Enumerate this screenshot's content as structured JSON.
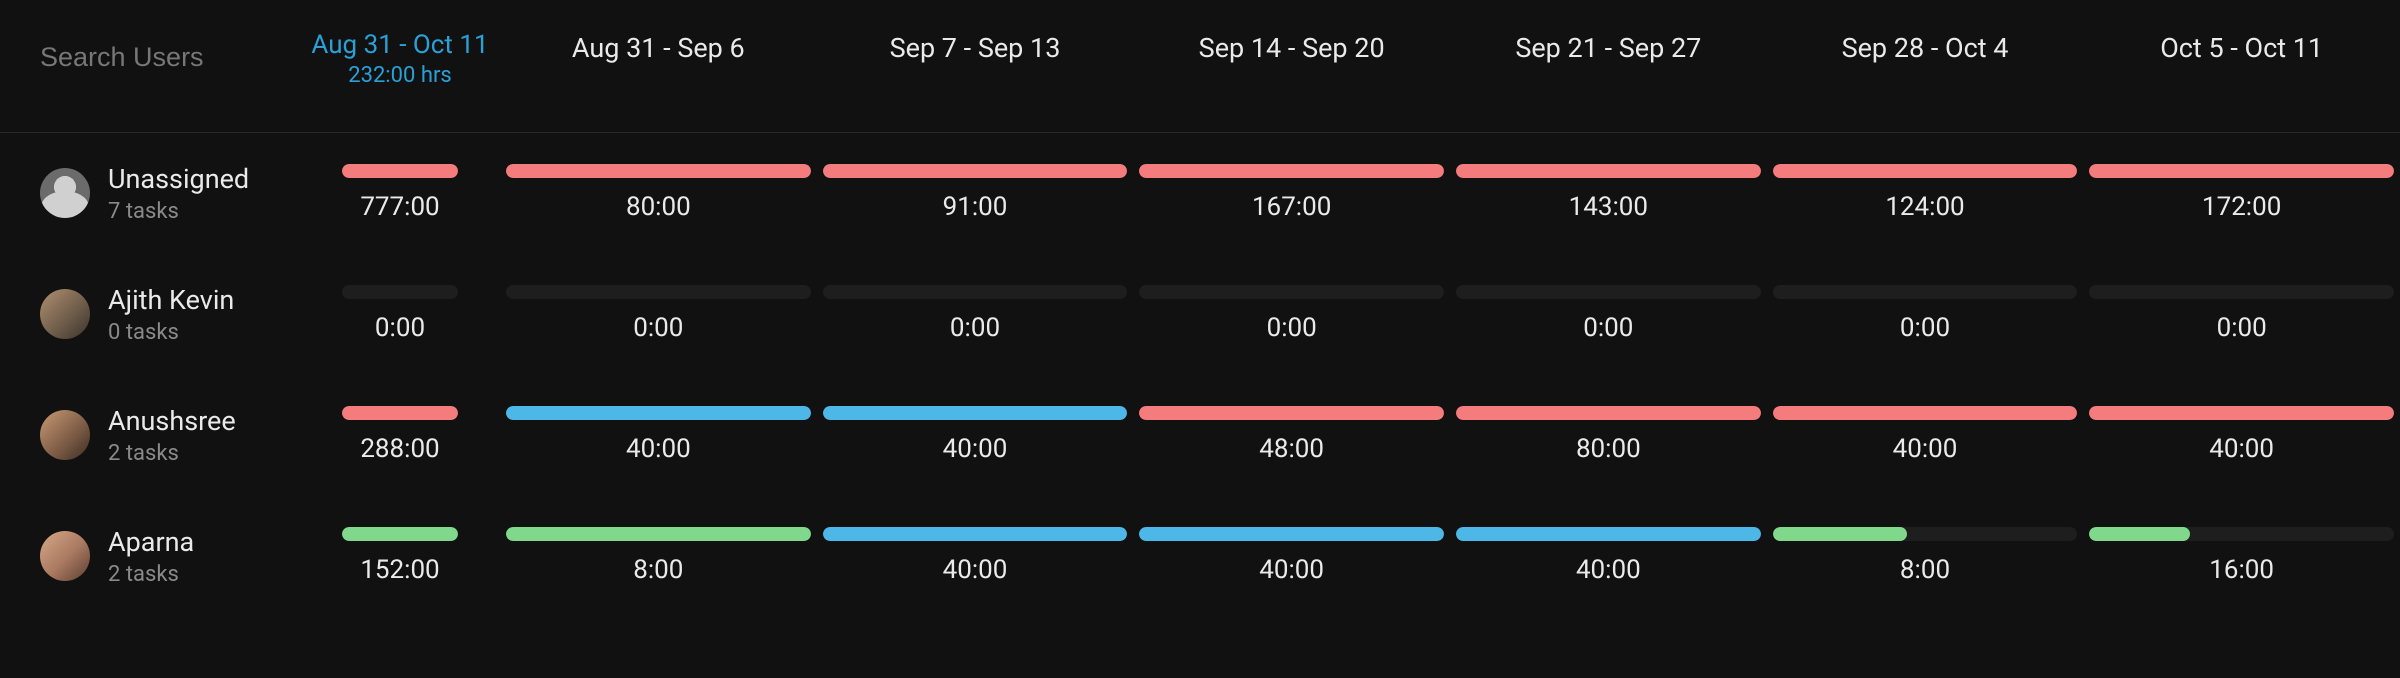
{
  "colors": {
    "red": "#f47c7c",
    "blue": "#4db8e8",
    "green": "#7fd88b",
    "accent": "#2aa0d8",
    "track": "#1e1e1e",
    "text": "#eaeaea",
    "muted": "#8a8a8a",
    "bg": "#111111"
  },
  "search": {
    "placeholder": "Search Users"
  },
  "total_header": {
    "range": "Aug 31 - Oct 11",
    "hrs": "232:00 hrs"
  },
  "period_headers": [
    "Aug 31 - Sep 6",
    "Sep 7 - Sep 13",
    "Sep 14 - Sep 20",
    "Sep 21 - Sep 27",
    "Sep 28 - Oct 4",
    "Oct 5 - Oct 11"
  ],
  "users": [
    {
      "name": "Unassigned",
      "sub": "7 tasks",
      "avatar": "placeholder",
      "total": {
        "value": "777:00",
        "segments": [
          {
            "color": "red",
            "pct": 100
          }
        ]
      },
      "periods": [
        {
          "value": "80:00",
          "segments": [
            {
              "color": "red",
              "pct": 100
            }
          ]
        },
        {
          "value": "91:00",
          "segments": [
            {
              "color": "red",
              "pct": 100
            }
          ]
        },
        {
          "value": "167:00",
          "segments": [
            {
              "color": "red",
              "pct": 100
            }
          ]
        },
        {
          "value": "143:00",
          "segments": [
            {
              "color": "red",
              "pct": 100
            }
          ]
        },
        {
          "value": "124:00",
          "segments": [
            {
              "color": "red",
              "pct": 100
            }
          ]
        },
        {
          "value": "172:00",
          "segments": [
            {
              "color": "red",
              "pct": 100
            }
          ]
        }
      ]
    },
    {
      "name": "Ajith Kevin",
      "sub": "0 tasks",
      "avatar_bg": "linear-gradient(135deg,#b09070 0%,#6b5a48 60%,#3a332a 100%)",
      "total": {
        "value": "0:00",
        "segments": []
      },
      "periods": [
        {
          "value": "0:00",
          "segments": []
        },
        {
          "value": "0:00",
          "segments": []
        },
        {
          "value": "0:00",
          "segments": []
        },
        {
          "value": "0:00",
          "segments": []
        },
        {
          "value": "0:00",
          "segments": []
        },
        {
          "value": "0:00",
          "segments": []
        }
      ]
    },
    {
      "name": "Anushsree",
      "sub": "2 tasks",
      "avatar_bg": "linear-gradient(135deg,#c99a74 0%,#7a5a44 60%,#3a2d22 100%)",
      "total": {
        "value": "288:00",
        "segments": [
          {
            "color": "red",
            "pct": 100
          }
        ]
      },
      "periods": [
        {
          "value": "40:00",
          "segments": [
            {
              "color": "blue",
              "pct": 100
            }
          ]
        },
        {
          "value": "40:00",
          "segments": [
            {
              "color": "blue",
              "pct": 100
            }
          ]
        },
        {
          "value": "48:00",
          "segments": [
            {
              "color": "red",
              "pct": 100
            }
          ]
        },
        {
          "value": "80:00",
          "segments": [
            {
              "color": "red",
              "pct": 100
            }
          ]
        },
        {
          "value": "40:00",
          "segments": [
            {
              "color": "red",
              "pct": 100
            }
          ]
        },
        {
          "value": "40:00",
          "segments": [
            {
              "color": "red",
              "pct": 100
            }
          ]
        }
      ]
    },
    {
      "name": "Aparna",
      "sub": "2 tasks",
      "avatar_bg": "linear-gradient(135deg,#d9a98a 0%,#a87860 55%,#5a3d30 100%)",
      "total": {
        "value": "152:00",
        "segments": [
          {
            "color": "green",
            "pct": 100
          }
        ]
      },
      "periods": [
        {
          "value": "8:00",
          "segments": [
            {
              "color": "green",
              "pct": 100
            }
          ]
        },
        {
          "value": "40:00",
          "segments": [
            {
              "color": "blue",
              "pct": 100
            }
          ]
        },
        {
          "value": "40:00",
          "segments": [
            {
              "color": "blue",
              "pct": 100
            }
          ]
        },
        {
          "value": "40:00",
          "segments": [
            {
              "color": "blue",
              "pct": 100
            }
          ]
        },
        {
          "value": "8:00",
          "segments": [
            {
              "color": "green",
              "pct": 44
            }
          ]
        },
        {
          "value": "16:00",
          "segments": [
            {
              "color": "green",
              "pct": 33
            }
          ]
        }
      ]
    }
  ]
}
